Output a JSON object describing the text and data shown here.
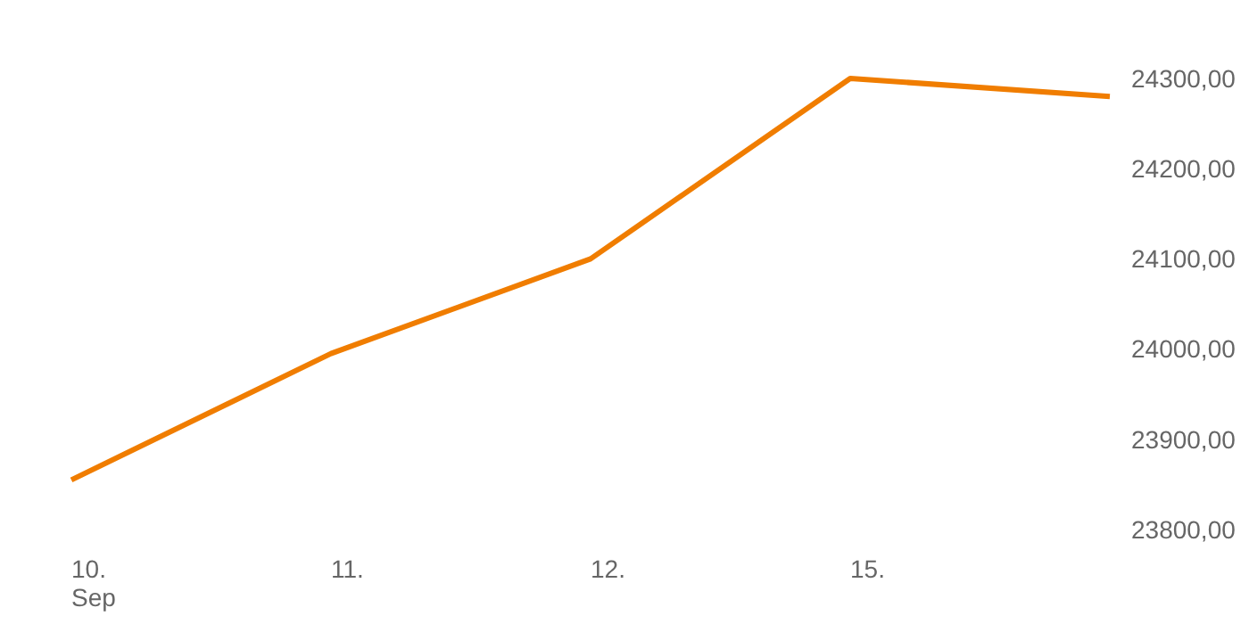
{
  "chart_data": {
    "type": "line",
    "categories": [
      "10.\nSep",
      "11.",
      "12.",
      "15.",
      null
    ],
    "series": [
      {
        "color": "#f07d00",
        "values": [
          23855,
          23995,
          24100,
          24300,
          24280
        ]
      }
    ],
    "ylim": [
      23800,
      24300
    ],
    "yticks": [
      {
        "value": 23800,
        "label": "23800,00"
      },
      {
        "value": 23900,
        "label": "23900,00"
      },
      {
        "value": 24000,
        "label": "24000,00"
      },
      {
        "value": 24100,
        "label": "24100,00"
      },
      {
        "value": 24200,
        "label": "24200,00"
      },
      {
        "value": 24300,
        "label": "24300,00"
      }
    ],
    "grid": false,
    "marker": "none",
    "line_style": "solid"
  }
}
